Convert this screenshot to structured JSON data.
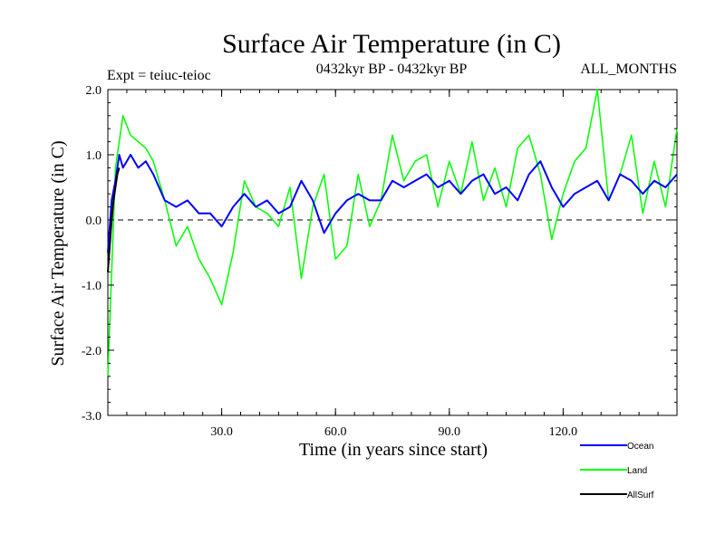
{
  "chart_data": {
    "type": "line",
    "title": "Surface Air Temperature (in C)",
    "experiment": "Expt = teiuc-teioc",
    "period": "0432kyr BP - 0432kyr BP",
    "months": "ALL_MONTHS",
    "xlabel": "Time (in years since start)",
    "ylabel": "Surface Air Temperature (in C)",
    "xlim": [
      0,
      150
    ],
    "ylim": [
      -3.0,
      2.0
    ],
    "x_ticks": [
      30,
      60,
      90,
      120
    ],
    "x_tick_labels": [
      "30.0",
      "60.0",
      "90.0",
      "120.0"
    ],
    "y_ticks": [
      -3,
      -2,
      -1,
      0,
      1,
      2
    ],
    "y_tick_labels": [
      "-3.0",
      "-2.0",
      "-1.0",
      "0.0",
      "1.0",
      "2.0"
    ],
    "zero_line": "dashed",
    "series": [
      {
        "name": "Land",
        "color": "#00ff00",
        "x": [
          0,
          2,
          4,
          6,
          8,
          10,
          12,
          15,
          18,
          21,
          24,
          27,
          30,
          33,
          36,
          39,
          42,
          45,
          48,
          51,
          54,
          57,
          60,
          63,
          66,
          69,
          72,
          75,
          78,
          81,
          84,
          87,
          90,
          93,
          96,
          99,
          102,
          105,
          108,
          111,
          114,
          117,
          120,
          123,
          126,
          129,
          132,
          135,
          138,
          141,
          144,
          147,
          150
        ],
        "values": [
          -2.4,
          0.8,
          1.6,
          1.3,
          1.2,
          1.1,
          0.9,
          0.3,
          -0.4,
          -0.1,
          -0.6,
          -0.9,
          -1.3,
          -0.5,
          0.6,
          0.2,
          0.1,
          -0.1,
          0.5,
          -0.9,
          0.2,
          0.7,
          -0.6,
          -0.4,
          0.7,
          -0.1,
          0.3,
          1.3,
          0.6,
          0.9,
          1.0,
          0.2,
          0.9,
          0.4,
          1.2,
          0.3,
          0.8,
          0.2,
          1.1,
          1.3,
          0.7,
          -0.3,
          0.4,
          0.9,
          1.1,
          2.0,
          0.3,
          0.7,
          1.3,
          0.1,
          0.9,
          0.2,
          1.4
        ]
      },
      {
        "name": "Ocean",
        "color": "#0000ff",
        "x": [
          0,
          1,
          2,
          3,
          4,
          5,
          6,
          8,
          10,
          12,
          15,
          18,
          21,
          24,
          27,
          30,
          33,
          36,
          39,
          42,
          45,
          48,
          51,
          54,
          57,
          60,
          63,
          66,
          69,
          72,
          75,
          78,
          81,
          84,
          87,
          90,
          93,
          96,
          99,
          102,
          105,
          108,
          111,
          114,
          117,
          120,
          123,
          126,
          129,
          132,
          135,
          138,
          141,
          144,
          147,
          150
        ],
        "values": [
          -0.5,
          0.3,
          0.6,
          1.0,
          0.8,
          0.9,
          1.0,
          0.8,
          0.9,
          0.7,
          0.3,
          0.2,
          0.3,
          0.1,
          0.1,
          -0.1,
          0.2,
          0.4,
          0.2,
          0.3,
          0.1,
          0.2,
          0.6,
          0.3,
          -0.2,
          0.1,
          0.3,
          0.4,
          0.3,
          0.3,
          0.6,
          0.5,
          0.6,
          0.7,
          0.5,
          0.6,
          0.4,
          0.6,
          0.7,
          0.4,
          0.5,
          0.3,
          0.7,
          0.9,
          0.5,
          0.2,
          0.4,
          0.5,
          0.6,
          0.3,
          0.7,
          0.6,
          0.4,
          0.6,
          0.5,
          0.7
        ]
      },
      {
        "name": "AllSurf",
        "color": "#000000",
        "x": [
          0,
          0.5,
          1,
          1.5,
          2,
          2.5,
          3
        ],
        "values": [
          -0.8,
          -0.4,
          0.0,
          0.3,
          0.5,
          0.7,
          0.8
        ]
      }
    ],
    "legend": [
      "Ocean",
      "Land",
      "AllSurf"
    ],
    "legend_position": "bottom-right, below plot"
  }
}
